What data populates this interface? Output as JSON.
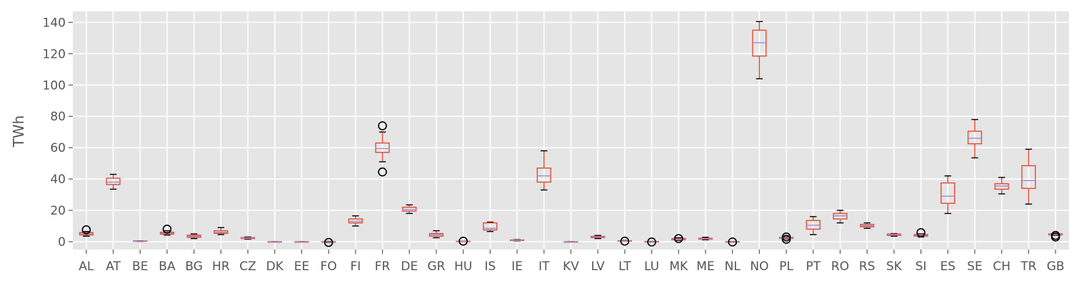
{
  "chart_data": {
    "type": "box",
    "title": "",
    "xlabel": "",
    "ylabel": "TWh",
    "ylim": [
      -5,
      147
    ],
    "yticks": [
      0,
      20,
      40,
      60,
      80,
      100,
      120,
      140
    ],
    "grid": true,
    "colors": {
      "background": "#e5e5e5",
      "grid": "#ffffff",
      "box": "#e24a33",
      "median": "#988ed5",
      "whisker": "#000000",
      "text": "#555555"
    },
    "categories": [
      "AL",
      "AT",
      "BE",
      "BA",
      "BG",
      "HR",
      "CZ",
      "DK",
      "EE",
      "FO",
      "FI",
      "FR",
      "DE",
      "GR",
      "HU",
      "IS",
      "IE",
      "IT",
      "KV",
      "LV",
      "LT",
      "LU",
      "MK",
      "ME",
      "NL",
      "NO",
      "PL",
      "PT",
      "RO",
      "RS",
      "SK",
      "SI",
      "ES",
      "SE",
      "CH",
      "TR",
      "GB"
    ],
    "boxes": [
      {
        "label": "AL",
        "whislo": 3.5,
        "q1": 4.3,
        "med": 5.0,
        "q3": 5.8,
        "whishi": 6.5,
        "fliers": [
          7.6
        ]
      },
      {
        "label": "AT",
        "whislo": 33.5,
        "q1": 36.5,
        "med": 38.0,
        "q3": 40.5,
        "whishi": 43.0,
        "fliers": []
      },
      {
        "label": "BE",
        "whislo": 0.2,
        "q1": 0.3,
        "med": 0.4,
        "q3": 0.5,
        "whishi": 0.6,
        "fliers": []
      },
      {
        "label": "BA",
        "whislo": 4.2,
        "q1": 4.8,
        "med": 5.4,
        "q3": 6.0,
        "whishi": 7.0,
        "fliers": [
          8.0
        ]
      },
      {
        "label": "BG",
        "whislo": 2.0,
        "q1": 2.8,
        "med": 3.5,
        "q3": 4.2,
        "whishi": 5.0,
        "fliers": []
      },
      {
        "label": "HR",
        "whislo": 4.5,
        "q1": 5.3,
        "med": 6.0,
        "q3": 7.0,
        "whishi": 9.0,
        "fliers": []
      },
      {
        "label": "CZ",
        "whislo": 1.6,
        "q1": 2.0,
        "med": 2.3,
        "q3": 2.6,
        "whishi": 3.0,
        "fliers": []
      },
      {
        "label": "DK",
        "whislo": 0.0,
        "q1": 0.0,
        "med": 0.0,
        "q3": 0.0,
        "whishi": 0.0,
        "fliers": []
      },
      {
        "label": "EE",
        "whislo": 0.0,
        "q1": 0.0,
        "med": 0.0,
        "q3": 0.0,
        "whishi": 0.0,
        "fliers": []
      },
      {
        "label": "FO",
        "whislo": -0.5,
        "q1": -0.3,
        "med": -0.2,
        "q3": 0.0,
        "whishi": 0.2,
        "fliers": [
          -0.5
        ]
      },
      {
        "label": "FI",
        "whislo": 10.0,
        "q1": 12.0,
        "med": 13.0,
        "q3": 14.5,
        "whishi": 16.5,
        "fliers": []
      },
      {
        "label": "FR",
        "whislo": 51.0,
        "q1": 57.0,
        "med": 59.5,
        "q3": 63.0,
        "whishi": 70.0,
        "fliers": [
          74.0,
          44.5
        ]
      },
      {
        "label": "DE",
        "whislo": 18.0,
        "q1": 19.5,
        "med": 20.5,
        "q3": 22.0,
        "whishi": 23.5,
        "fliers": []
      },
      {
        "label": "GR",
        "whislo": 2.5,
        "q1": 3.5,
        "med": 4.5,
        "q3": 5.2,
        "whishi": 7.0,
        "fliers": []
      },
      {
        "label": "HU",
        "whislo": 0.1,
        "q1": 0.2,
        "med": 0.2,
        "q3": 0.3,
        "whishi": 0.3,
        "fliers": [
          0.3
        ]
      },
      {
        "label": "IS",
        "whislo": 6.5,
        "q1": 7.5,
        "med": 8.5,
        "q3": 12.0,
        "whishi": 12.5,
        "fliers": []
      },
      {
        "label": "IE",
        "whislo": 0.5,
        "q1": 0.7,
        "med": 0.9,
        "q3": 1.1,
        "whishi": 1.3,
        "fliers": []
      },
      {
        "label": "IT",
        "whislo": 33.0,
        "q1": 38.0,
        "med": 42.0,
        "q3": 47.0,
        "whishi": 58.0,
        "fliers": []
      },
      {
        "label": "KV",
        "whislo": 0.0,
        "q1": 0.0,
        "med": 0.0,
        "q3": 0.0,
        "whishi": 0.0,
        "fliers": []
      },
      {
        "label": "LV",
        "whislo": 2.0,
        "q1": 2.6,
        "med": 3.0,
        "q3": 3.4,
        "whishi": 4.0,
        "fliers": []
      },
      {
        "label": "LT",
        "whislo": 0.3,
        "q1": 0.4,
        "med": 0.5,
        "q3": 0.6,
        "whishi": 0.8,
        "fliers": [
          0.3
        ]
      },
      {
        "label": "LU",
        "whislo": -0.2,
        "q1": -0.1,
        "med": 0.0,
        "q3": 0.1,
        "whishi": 0.2,
        "fliers": [
          -0.2
        ]
      },
      {
        "label": "MK",
        "whislo": 0.8,
        "q1": 1.2,
        "med": 1.5,
        "q3": 2.0,
        "whishi": 2.5,
        "fliers": [
          2.0
        ]
      },
      {
        "label": "ME",
        "whislo": 1.2,
        "q1": 1.6,
        "med": 1.9,
        "q3": 2.2,
        "whishi": 2.8,
        "fliers": []
      },
      {
        "label": "NL",
        "whislo": -0.2,
        "q1": -0.1,
        "med": 0.0,
        "q3": 0.0,
        "whishi": 0.1,
        "fliers": [
          -0.2
        ]
      },
      {
        "label": "NO",
        "whislo": 104.0,
        "q1": 118.5,
        "med": 127.0,
        "q3": 135.0,
        "whishi": 140.5,
        "fliers": []
      },
      {
        "label": "PL",
        "whislo": 1.8,
        "q1": 2.1,
        "med": 2.4,
        "q3": 2.7,
        "whishi": 3.0,
        "fliers": [
          1.5,
          3.0
        ]
      },
      {
        "label": "PT",
        "whislo": 4.5,
        "q1": 8.0,
        "med": 10.5,
        "q3": 13.5,
        "whishi": 16.0,
        "fliers": []
      },
      {
        "label": "RO",
        "whislo": 12.0,
        "q1": 14.5,
        "med": 16.5,
        "q3": 18.0,
        "whishi": 20.0,
        "fliers": []
      },
      {
        "label": "RS",
        "whislo": 8.5,
        "q1": 9.5,
        "med": 10.2,
        "q3": 11.0,
        "whishi": 12.0,
        "fliers": []
      },
      {
        "label": "SK",
        "whislo": 3.5,
        "q1": 4.0,
        "med": 4.5,
        "q3": 4.9,
        "whishi": 5.2,
        "fliers": []
      },
      {
        "label": "SI",
        "whislo": 3.0,
        "q1": 3.6,
        "med": 4.2,
        "q3": 4.6,
        "whishi": 5.0,
        "fliers": [
          5.8
        ]
      },
      {
        "label": "ES",
        "whislo": 18.0,
        "q1": 24.5,
        "med": 29.0,
        "q3": 37.5,
        "whishi": 42.0,
        "fliers": []
      },
      {
        "label": "SE",
        "whislo": 53.5,
        "q1": 62.5,
        "med": 66.0,
        "q3": 70.5,
        "whishi": 78.0,
        "fliers": []
      },
      {
        "label": "CH",
        "whislo": 30.5,
        "q1": 33.5,
        "med": 35.5,
        "q3": 37.0,
        "whishi": 41.0,
        "fliers": []
      },
      {
        "label": "TR",
        "whislo": 24.0,
        "q1": 34.0,
        "med": 39.0,
        "q3": 48.5,
        "whishi": 59.0,
        "fliers": []
      },
      {
        "label": "GB",
        "whislo": 4.0,
        "q1": 4.3,
        "med": 4.6,
        "q3": 5.0,
        "whishi": 5.2,
        "fliers": [
          3.0,
          4.0
        ]
      }
    ]
  }
}
